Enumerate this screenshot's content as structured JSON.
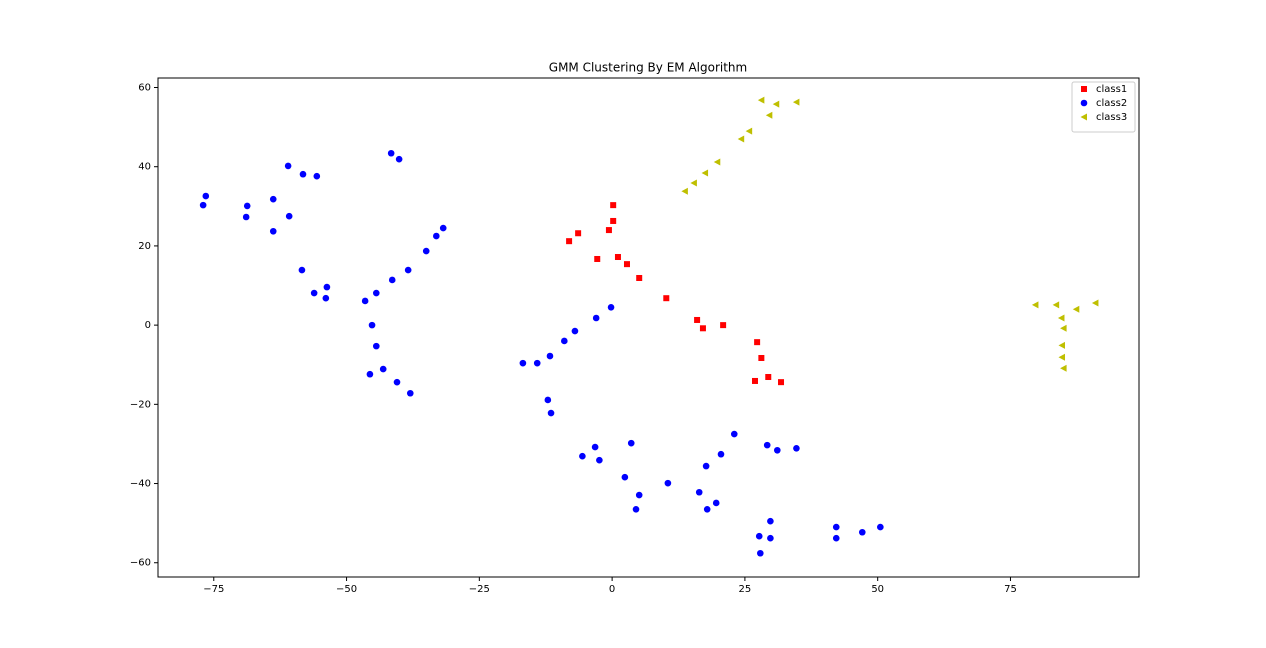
{
  "chart_data": {
    "type": "scatter",
    "title": "GMM Clustering By EM Algorithm",
    "xlim": [
      -85.5,
      99.2
    ],
    "ylim": [
      -63.6,
      62.4
    ],
    "xticks": [
      {
        "value": -75,
        "label": "−75"
      },
      {
        "value": -50,
        "label": "−50"
      },
      {
        "value": -25,
        "label": "−25"
      },
      0,
      25,
      50,
      75
    ],
    "yticks": [
      {
        "value": -60,
        "label": "−60"
      },
      {
        "value": -40,
        "label": "−40"
      },
      {
        "value": -20,
        "label": "−20"
      },
      0,
      20,
      40,
      60
    ],
    "legend": "upper right",
    "series": [
      {
        "name": "class1",
        "color": "#ff0000",
        "marker": "square",
        "x": [
          0.2,
          0.2,
          -6.4,
          -0.6,
          -8.1,
          -2.8,
          1.1,
          2.8,
          5.1,
          10.2,
          16.0,
          17.1,
          20.9,
          27.3,
          28.1,
          29.4,
          26.9,
          31.8
        ],
        "y": [
          30.3,
          26.3,
          23.2,
          24.0,
          21.2,
          16.7,
          17.2,
          15.4,
          11.9,
          6.8,
          1.3,
          -0.8,
          0,
          -4.3,
          -8.3,
          -13.1,
          -14.1,
          -14.4
        ]
      },
      {
        "name": "class2",
        "color": "#0000ff",
        "marker": "circle",
        "x": [
          -76.5,
          -77.0,
          -68.7,
          -68.9,
          -63.8,
          -63.8,
          -61.0,
          -60.8,
          -58.2,
          -55.6,
          -58.4,
          -56.1,
          -53.7,
          -53.9,
          -41.6,
          -40.1,
          -31.8,
          -33.1,
          -35.0,
          -38.4,
          -41.4,
          -44.4,
          -46.5,
          -45.2,
          -44.4,
          -45.6,
          -43.1,
          -40.5,
          -38.0,
          -16.8,
          -14.1,
          -11.7,
          -9.0,
          -7.0,
          -3.0,
          -0.2,
          -12.1,
          -11.5,
          -5.6,
          -3.2,
          -2.4,
          3.6,
          2.4,
          5.1,
          4.5,
          10.5,
          16.4,
          17.7,
          17.9,
          19.6,
          20.5,
          23.0,
          29.2,
          31.1,
          34.7,
          29.8,
          27.7,
          29.8,
          27.9,
          42.2,
          42.2,
          47.1,
          50.5
        ],
        "y": [
          32.6,
          30.3,
          30.1,
          27.3,
          31.8,
          23.7,
          40.2,
          27.5,
          38.1,
          37.6,
          13.9,
          8.1,
          9.6,
          6.8,
          43.4,
          41.9,
          24.5,
          22.5,
          18.7,
          13.9,
          11.4,
          8.1,
          6.1,
          0,
          -5.3,
          -12.4,
          -11.1,
          -14.4,
          -17.2,
          -9.6,
          -9.6,
          -7.8,
          -4.0,
          -1.5,
          1.8,
          4.5,
          -18.9,
          -22.2,
          -33.1,
          -30.8,
          -34.1,
          -29.8,
          -38.4,
          -42.9,
          -46.5,
          -39.9,
          -42.2,
          -35.6,
          -46.5,
          -44.9,
          -32.6,
          -27.5,
          -30.3,
          -31.6,
          -31.1,
          -49.5,
          -53.3,
          -53.8,
          -57.6,
          -51.0,
          -53.8,
          -52.3,
          -51.0
        ]
      },
      {
        "name": "class3",
        "color": "#bfbf00",
        "marker": "triangle-left",
        "x": [
          13.7,
          15.4,
          17.5,
          19.8,
          24.3,
          25.8,
          29.6,
          28.1,
          30.9,
          34.7,
          79.7,
          83.6,
          84.6,
          85.0,
          87.4,
          91.0,
          84.7,
          84.7,
          85.0
        ],
        "y": [
          33.8,
          35.9,
          38.4,
          41.2,
          47.0,
          49.0,
          53.0,
          56.8,
          55.8,
          56.3,
          5.1,
          5.1,
          1.8,
          -0.8,
          4.0,
          5.6,
          -5.1,
          -8.1,
          -10.9
        ]
      }
    ]
  }
}
